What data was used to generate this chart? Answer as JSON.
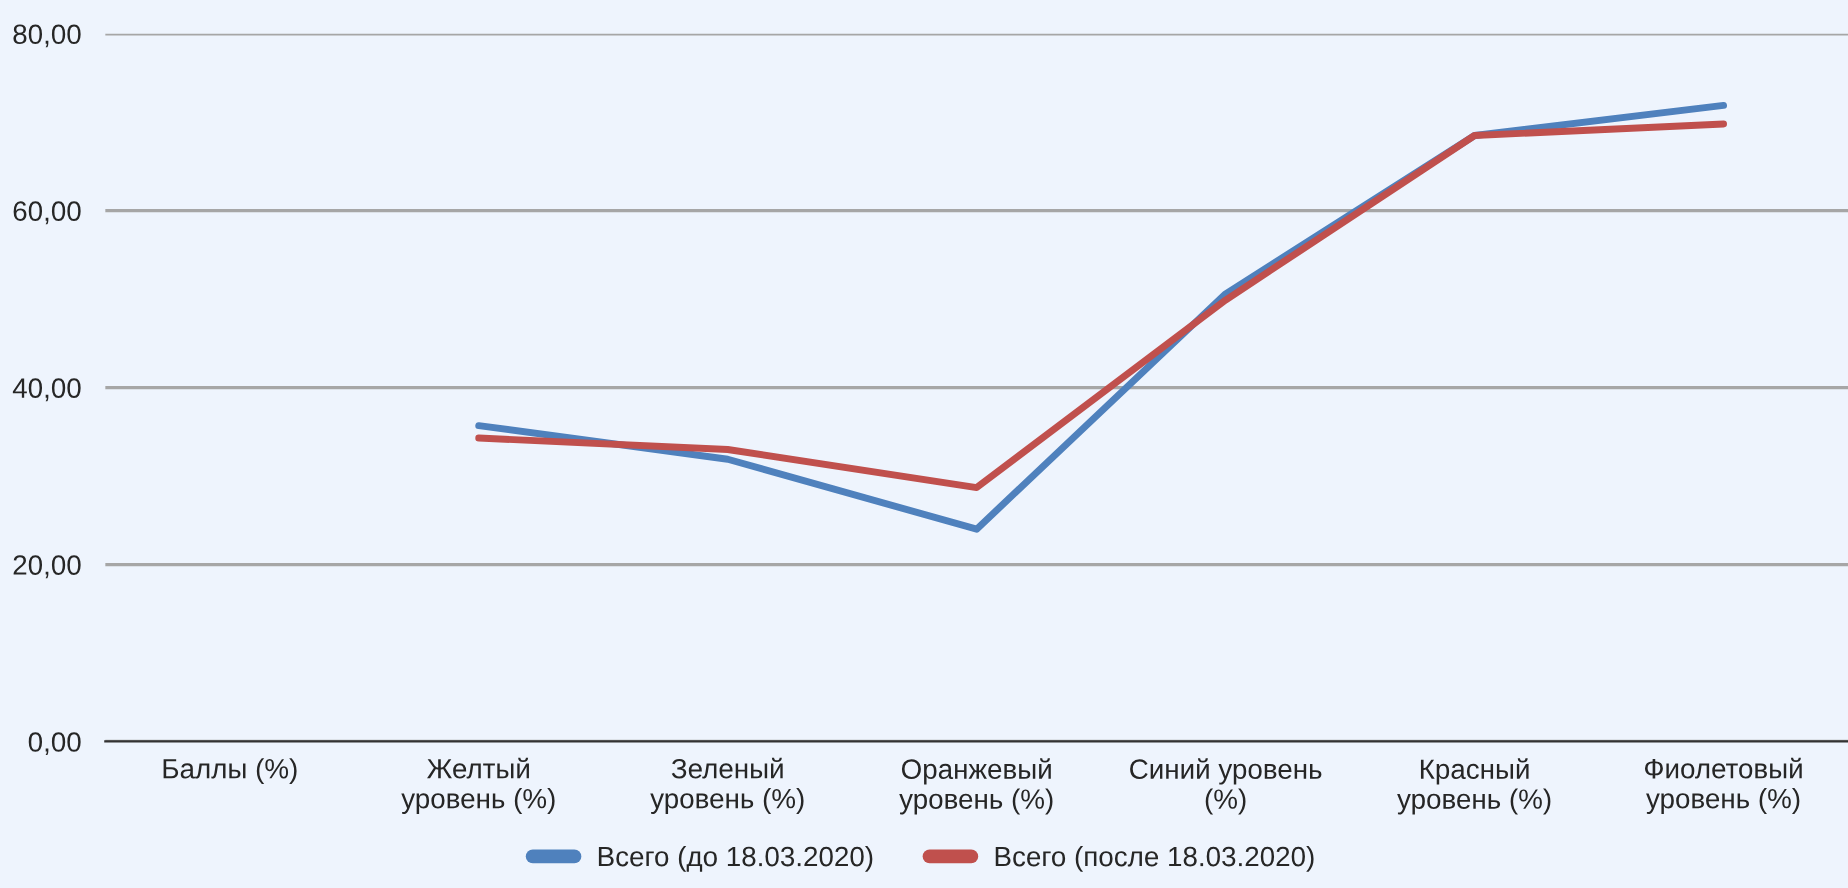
{
  "chart_data": {
    "type": "line",
    "categories": [
      "Баллы (%)",
      "Желтый\nуровень (%)",
      "Зеленый\nуровень (%)",
      "Оранжевый\nуровень (%)",
      "Синий уровень\n(%)",
      "Красный\nуровень (%)",
      "Фиолетовый\nуровень (%)"
    ],
    "series": [
      {
        "name": "Всего (до 18.03.2020)",
        "color": "#4f81bd",
        "values": [
          null,
          35.7,
          31.9,
          24.0,
          50.6,
          68.5,
          71.9
        ]
      },
      {
        "name": "Всего (после 18.03.2020)",
        "color": "#c0504d",
        "values": [
          null,
          34.3,
          33.0,
          28.7,
          49.9,
          68.5,
          69.8
        ]
      }
    ],
    "ylim": [
      0,
      80
    ],
    "yticks": [
      {
        "value": 0,
        "label": "0,00"
      },
      {
        "value": 20,
        "label": "20,00"
      },
      {
        "value": 40,
        "label": "40,00"
      },
      {
        "value": 60,
        "label": "60,00"
      },
      {
        "value": 80,
        "label": "80,00"
      }
    ],
    "grid": "y",
    "legend": "bottom",
    "marker": "none",
    "line_style": "solid"
  }
}
